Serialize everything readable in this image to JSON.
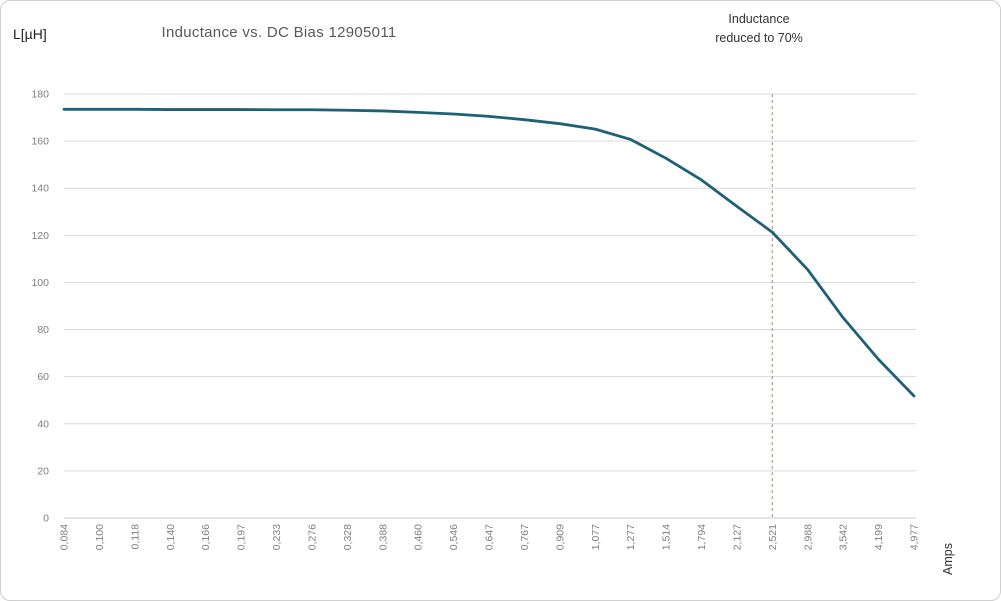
{
  "chart_data": {
    "type": "line",
    "title": "Inductance vs. DC Bias 12905011",
    "y_axis_title": "L[µH]",
    "x_axis_title": "Amps",
    "annotation": {
      "line1": "Inductance",
      "line2": "reduced to 70%",
      "at_category": "2,521"
    },
    "categories": [
      "0,084",
      "0,100",
      "0,118",
      "0,140",
      "0,166",
      "0,197",
      "0,233",
      "0,276",
      "0,328",
      "0,388",
      "0,460",
      "0,546",
      "0,647",
      "0,767",
      "0,909",
      "1,077",
      "1,277",
      "1,514",
      "1,794",
      "2,127",
      "2,521",
      "2,988",
      "3,542",
      "4,199",
      "4,977"
    ],
    "series": [
      {
        "name": "Inductance",
        "values": [
          173.5,
          173.5,
          173.5,
          173.4,
          173.4,
          173.4,
          173.3,
          173.3,
          173.1,
          172.8,
          172.2,
          171.5,
          170.5,
          169.1,
          167.4,
          165.1,
          160.7,
          152.7,
          143.5,
          132.3,
          121.3,
          105.4,
          85.0,
          67.3,
          51.8
        ]
      }
    ],
    "ylim": [
      0,
      180
    ],
    "ytick_step": 20,
    "grid": "horizontal-only",
    "legend": "none",
    "colors": {
      "line": "#1e6078",
      "annotation_line": "#c49a6c",
      "gridline": "#d9d9d9",
      "axis_line": "#c9c9c9",
      "tick_label": "#7f7f7f",
      "title_text": "#595959",
      "annotation_text": "#333333"
    }
  }
}
